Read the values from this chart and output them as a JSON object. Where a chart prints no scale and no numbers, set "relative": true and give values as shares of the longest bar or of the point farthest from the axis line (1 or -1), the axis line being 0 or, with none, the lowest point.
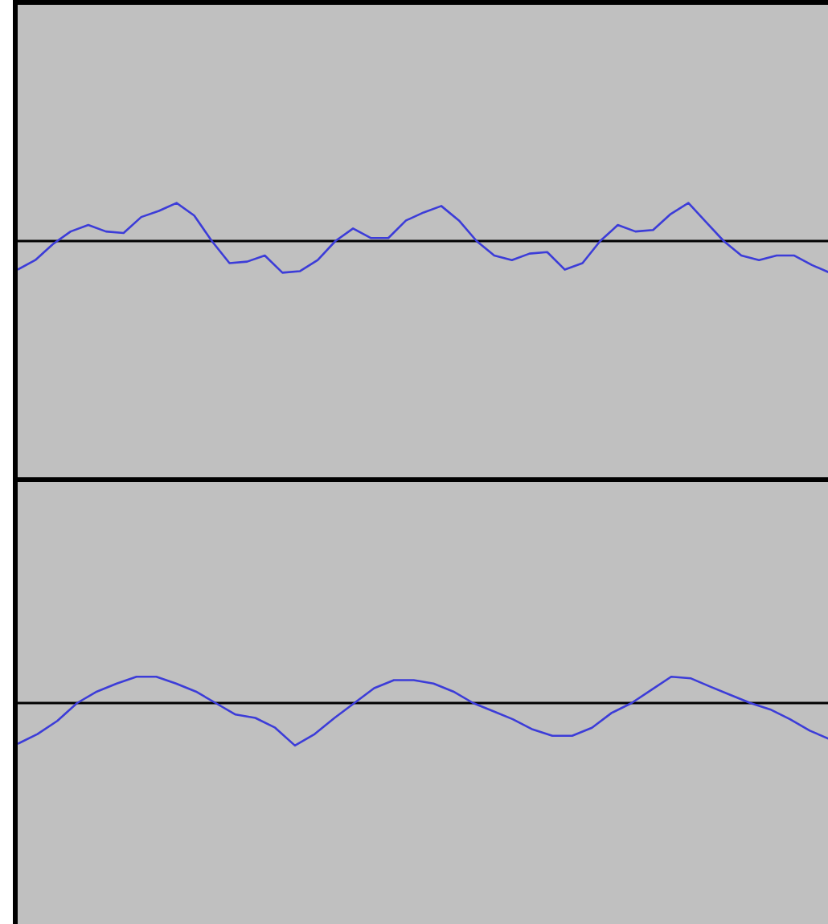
{
  "chart_data": [
    {
      "type": "line",
      "relative": true,
      "color": "#3c3cd8",
      "categories": [
        null,
        null,
        null,
        null,
        null,
        null,
        null,
        null,
        null,
        null,
        null,
        null,
        null,
        null,
        null,
        null,
        null,
        null,
        null,
        null,
        null,
        null,
        null,
        null,
        null,
        null,
        null,
        null,
        null,
        null,
        null,
        null,
        null,
        null,
        null,
        null,
        null,
        null,
        null,
        null,
        null,
        null,
        null,
        null,
        null,
        null,
        null
      ],
      "values": [
        -0.75,
        -0.5,
        -0.08,
        0.25,
        0.42,
        0.25,
        0.21,
        0.63,
        0.79,
        1,
        0.67,
        0,
        -0.58,
        -0.54,
        -0.38,
        -0.83,
        -0.79,
        -0.5,
        0,
        0.33,
        0.08,
        0.08,
        0.54,
        0.75,
        0.92,
        0.54,
        0,
        -0.38,
        -0.5,
        -0.33,
        -0.29,
        -0.75,
        -0.58,
        0,
        0.42,
        0.25,
        0.29,
        0.71,
        1,
        0.5,
        0,
        -0.38,
        -0.5,
        -0.38,
        -0.38,
        -0.63,
        -0.83
      ]
    },
    {
      "type": "line",
      "relative": true,
      "color": "#3c3cd8",
      "categories": [
        null,
        null,
        null,
        null,
        null,
        null,
        null,
        null,
        null,
        null,
        null,
        null,
        null,
        null,
        null,
        null,
        null,
        null,
        null,
        null,
        null,
        null,
        null,
        null,
        null,
        null,
        null,
        null,
        null,
        null,
        null,
        null,
        null,
        null,
        null,
        null,
        null,
        null,
        null,
        null,
        null,
        null
      ],
      "values": [
        -0.96,
        -0.73,
        -0.42,
        0,
        0.27,
        0.46,
        0.62,
        0.62,
        0.46,
        0.27,
        0,
        -0.27,
        -0.35,
        -0.58,
        -1,
        -0.73,
        -0.35,
        0,
        0.35,
        0.54,
        0.54,
        0.46,
        0.27,
        0,
        -0.19,
        -0.38,
        -0.62,
        -0.77,
        -0.77,
        -0.58,
        -0.23,
        0,
        0.31,
        0.62,
        0.58,
        0.38,
        0.19,
        0,
        -0.15,
        -0.38,
        -0.65,
        -0.85
      ]
    }
  ]
}
